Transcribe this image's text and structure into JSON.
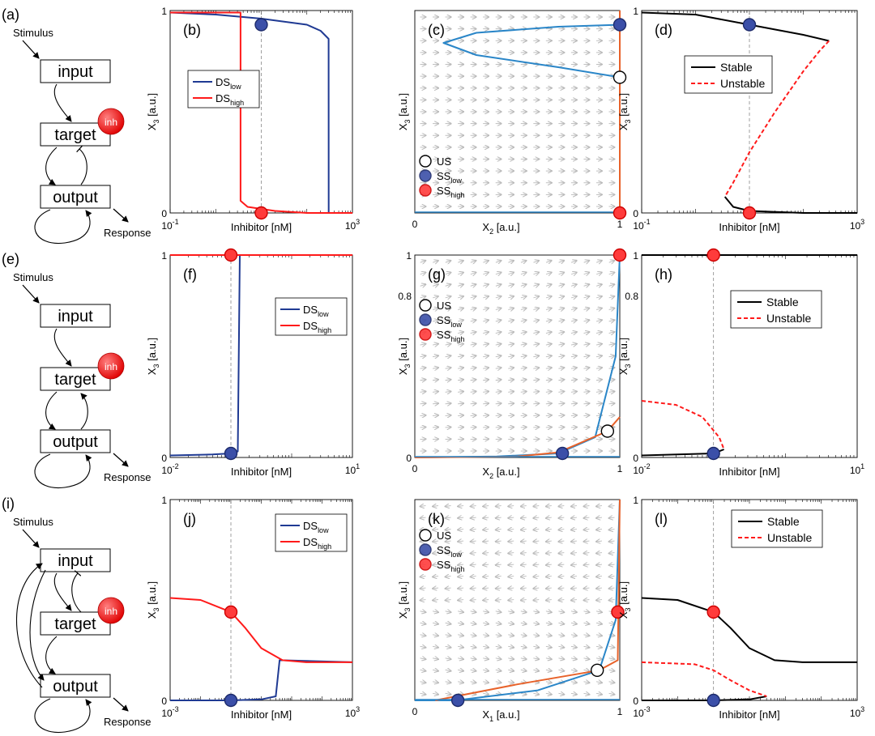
{
  "colors": {
    "ds_low": "#1f3a93",
    "ds_high": "#ff1a1a",
    "nullcline_blue": "#2a86c8",
    "nullcline_orange": "#e8622a",
    "ss_low": "#3b4fa8",
    "ss_high": "#ff3b3b",
    "stable": "#000000",
    "unstable": "#ff1a1a",
    "arrow": "#b8b8b8",
    "axis": "#000000"
  },
  "rows": [
    {
      "net": {
        "panel": "(a)",
        "stimulus": "Stimulus",
        "nodes": [
          "input",
          "target",
          "output"
        ],
        "inhibitor": "inh",
        "response": "Response",
        "topology": "neg"
      },
      "p1": {
        "panel": "(b)",
        "xlabel": "Inhibitor [nM]",
        "ylabel_main": "X",
        "ylabel_sub": "3",
        "ylabel_unit": " [a.u.]",
        "xtick_base": "10",
        "xtick_left_exp": "-1",
        "xtick_right_exp": "3",
        "yticks": [
          "0",
          "1"
        ],
        "legend": [
          {
            "main": "DS",
            "sub": "low"
          },
          {
            "main": "DS",
            "sub": "high"
          }
        ]
      },
      "p2": {
        "panel": "(c)",
        "xlabel_main": "X",
        "xlabel_sub": "2",
        "xlabel_unit": " [a.u.]",
        "ylabel_main": "X",
        "ylabel_sub": "3",
        "ylabel_unit": " [a.u.]",
        "xticks": [
          "0",
          "1"
        ],
        "yticks": [],
        "legend": [
          {
            "main": "US",
            "sub": ""
          },
          {
            "main": "SS",
            "sub": "low"
          },
          {
            "main": "SS",
            "sub": "high"
          }
        ]
      },
      "p3": {
        "panel": "(d)",
        "xlabel": "Inhibitor [nM]",
        "ylabel_main": "X",
        "ylabel_sub": "3",
        "ylabel_unit": " [a.u.]",
        "xtick_base": "10",
        "xtick_left_exp": "-1",
        "xtick_right_exp": "3",
        "yticks": [
          "0",
          "1"
        ],
        "legend": [
          "Stable",
          "Unstable"
        ]
      }
    },
    {
      "net": {
        "panel": "(e)",
        "stimulus": "Stimulus",
        "nodes": [
          "input",
          "target",
          "output"
        ],
        "inhibitor": "inh",
        "response": "Response",
        "topology": "pos"
      },
      "p1": {
        "panel": "(f)",
        "xlabel": "Inhibitor [nM]",
        "ylabel_main": "X",
        "ylabel_sub": "3",
        "ylabel_unit": " [a.u.]",
        "xtick_base": "10",
        "xtick_left_exp": "-2",
        "xtick_right_exp": "1",
        "yticks": [
          "0",
          "1"
        ],
        "legend": [
          {
            "main": "DS",
            "sub": "low"
          },
          {
            "main": "DS",
            "sub": "high"
          }
        ]
      },
      "p2": {
        "panel": "(g)",
        "xlabel_main": "X",
        "xlabel_sub": "2",
        "xlabel_unit": " [a.u.]",
        "ylabel_main": "X",
        "ylabel_sub": "3",
        "ylabel_unit": " [a.u.]",
        "xticks": [
          "0",
          "1"
        ],
        "yticks": [
          "0",
          "0.8",
          "1"
        ],
        "legend": [
          {
            "main": "US",
            "sub": ""
          },
          {
            "main": "SS",
            "sub": "low"
          },
          {
            "main": "SS",
            "sub": "high"
          }
        ]
      },
      "p3": {
        "panel": "(h)",
        "xlabel": "Inhibitor [nM]",
        "ylabel_main": "X",
        "ylabel_sub": "3",
        "ylabel_unit": " [a.u.]",
        "xtick_base": "10",
        "xtick_left_exp": "-2",
        "xtick_right_exp": "1",
        "yticks": [
          "0",
          "0.8",
          "1"
        ],
        "legend": [
          "Stable",
          "Unstable"
        ]
      }
    },
    {
      "net": {
        "panel": "(i)",
        "stimulus": "Stimulus",
        "nodes": [
          "input",
          "target",
          "output"
        ],
        "inhibitor": "inh",
        "response": "Response",
        "topology": "ff"
      },
      "p1": {
        "panel": "(j)",
        "xlabel": "Inhibitor [nM]",
        "ylabel_main": "X",
        "ylabel_sub": "3",
        "ylabel_unit": " [a.u.]",
        "xtick_base": "10",
        "xtick_left_exp": "-3",
        "xtick_right_exp": "3",
        "yticks": [
          "0",
          "1"
        ],
        "legend": [
          {
            "main": "DS",
            "sub": "low"
          },
          {
            "main": "DS",
            "sub": "high"
          }
        ]
      },
      "p2": {
        "panel": "(k)",
        "xlabel_main": "X",
        "xlabel_sub": "1",
        "xlabel_unit": " [a.u.]",
        "ylabel_main": "X",
        "ylabel_sub": "3",
        "ylabel_unit": " [a.u.]",
        "xticks": [
          "0",
          "1"
        ],
        "yticks": [],
        "legend": [
          {
            "main": "US",
            "sub": ""
          },
          {
            "main": "SS",
            "sub": "low"
          },
          {
            "main": "SS",
            "sub": "high"
          }
        ]
      },
      "p3": {
        "panel": "(l)",
        "xlabel": "Inhibitor [nM]",
        "ylabel_main": "X",
        "ylabel_sub": "3",
        "ylabel_unit": " [a.u.]",
        "xtick_base": "10",
        "xtick_left_exp": "-3",
        "xtick_right_exp": "3",
        "yticks": [
          "0",
          "1"
        ],
        "legend": [
          "Stable",
          "Unstable"
        ]
      }
    }
  ],
  "chart_data": [
    {
      "panel": "(b)",
      "type": "line",
      "xscale": "log",
      "xlim": [
        0.1,
        1000
      ],
      "ylim": [
        0,
        1
      ],
      "series": [
        {
          "name": "DS_low",
          "x": [
            0.1,
            1,
            10,
            100,
            200,
            300,
            301,
            1000
          ],
          "y": [
            0.99,
            0.98,
            0.96,
            0.93,
            0.9,
            0.86,
            0.0,
            0.0
          ]
        },
        {
          "name": "DS_high",
          "x": [
            0.1,
            1,
            3.5,
            3.51,
            5,
            20,
            100,
            1000
          ],
          "y": [
            0.99,
            0.99,
            0.99,
            0.06,
            0.03,
            0.01,
            0.0,
            0.0
          ]
        }
      ],
      "markers": [
        {
          "kind": "SS_low",
          "x": 10,
          "y": 0.93
        },
        {
          "kind": "SS_high",
          "x": 10,
          "y": 0.0
        }
      ],
      "vline_x": 10
    },
    {
      "panel": "(c)",
      "type": "line",
      "xlim": [
        0,
        1
      ],
      "ylim": [
        0,
        1
      ],
      "series": [
        {
          "name": "X3-nullcline",
          "x": [
            1,
            0.7,
            0.3,
            0.14,
            0.3,
            0.7,
            1
          ],
          "y": [
            0.93,
            0.92,
            0.89,
            0.84,
            0.78,
            0.72,
            0.67
          ]
        },
        {
          "name": "X2-nullcline",
          "x": [
            1,
            1
          ],
          "y": [
            0,
            1
          ]
        }
      ],
      "markers": [
        {
          "kind": "US",
          "x": 1,
          "y": 0.67
        },
        {
          "kind": "SS_low",
          "x": 1,
          "y": 0.93
        },
        {
          "kind": "SS_high",
          "x": 1,
          "y": 0.0
        }
      ]
    },
    {
      "panel": "(d)",
      "type": "line",
      "xscale": "log",
      "xlim": [
        0.1,
        1000
      ],
      "ylim": [
        0,
        1
      ],
      "series": [
        {
          "name": "Stable",
          "x": [
            0.1,
            1,
            10,
            100,
            300
          ],
          "y": [
            0.99,
            0.98,
            0.93,
            0.88,
            0.85
          ]
        },
        {
          "name": "Unstable",
          "x": [
            300,
            200,
            100,
            30,
            10,
            5,
            3.5
          ],
          "y": [
            0.85,
            0.8,
            0.7,
            0.5,
            0.3,
            0.15,
            0.08
          ]
        },
        {
          "name": "Stable",
          "x": [
            3.5,
            5,
            10,
            100,
            1000
          ],
          "y": [
            0.08,
            0.03,
            0.01,
            0.0,
            0.0
          ]
        }
      ],
      "markers": [
        {
          "kind": "SS_low",
          "x": 10,
          "y": 0.93
        },
        {
          "kind": "SS_high",
          "x": 10,
          "y": 0.0
        }
      ],
      "vline_x": 10
    },
    {
      "panel": "(f)",
      "type": "line",
      "xscale": "log",
      "xlim": [
        0.01,
        10
      ],
      "ylim": [
        0,
        1
      ],
      "series": [
        {
          "name": "DS_low",
          "x": [
            0.01,
            0.05,
            0.1,
            0.13,
            0.14,
            10
          ],
          "y": [
            0.01,
            0.015,
            0.02,
            0.03,
            1.0,
            1.0
          ]
        },
        {
          "name": "DS_high",
          "x": [
            0.01,
            10
          ],
          "y": [
            1.0,
            1.0
          ]
        }
      ],
      "markers": [
        {
          "kind": "SS_high",
          "x": 0.1,
          "y": 1.0
        },
        {
          "kind": "SS_low",
          "x": 0.1,
          "y": 0.02
        }
      ],
      "vline_x": 0.1
    },
    {
      "panel": "(g)",
      "type": "line",
      "xlim": [
        0,
        1
      ],
      "ylim": [
        0,
        1
      ],
      "series": [
        {
          "name": "X3-nullcline",
          "x": [
            0,
            0.4,
            0.7,
            0.88,
            0.98,
            1.0
          ],
          "y": [
            0.0,
            0.005,
            0.02,
            0.1,
            0.5,
            1.0
          ]
        },
        {
          "name": "X2-nullcline",
          "x": [
            0,
            0.5,
            0.7,
            0.94,
            1.0
          ],
          "y": [
            0.0,
            0.005,
            0.025,
            0.13,
            0.2
          ]
        }
      ],
      "markers": [
        {
          "kind": "US",
          "x": 0.94,
          "y": 0.13
        },
        {
          "kind": "SS_low",
          "x": 0.72,
          "y": 0.02
        },
        {
          "kind": "SS_high",
          "x": 1.0,
          "y": 1.0
        }
      ]
    },
    {
      "panel": "(h)",
      "type": "line",
      "xscale": "log",
      "xlim": [
        0.01,
        10
      ],
      "ylim": [
        0,
        1
      ],
      "series": [
        {
          "name": "Stable",
          "x": [
            0.01,
            10
          ],
          "y": [
            1.0,
            1.0
          ]
        },
        {
          "name": "Stable",
          "x": [
            0.01,
            0.1,
            0.14
          ],
          "y": [
            0.01,
            0.02,
            0.04
          ]
        },
        {
          "name": "Unstable",
          "x": [
            0.01,
            0.03,
            0.07,
            0.12,
            0.14
          ],
          "y": [
            0.28,
            0.26,
            0.2,
            0.1,
            0.04
          ]
        }
      ],
      "markers": [
        {
          "kind": "SS_high",
          "x": 0.1,
          "y": 1.0
        },
        {
          "kind": "SS_low",
          "x": 0.1,
          "y": 0.02
        }
      ],
      "vline_x": 0.1
    },
    {
      "panel": "(j)",
      "type": "line",
      "xscale": "log",
      "xlim": [
        0.001,
        1000
      ],
      "ylim": [
        0,
        1
      ],
      "series": [
        {
          "name": "DS_low",
          "x": [
            0.001,
            0.1,
            1,
            3,
            4,
            1000
          ],
          "y": [
            0.0,
            0.0,
            0.005,
            0.02,
            0.2,
            0.19
          ]
        },
        {
          "name": "DS_high",
          "x": [
            0.001,
            0.01,
            0.1,
            0.3,
            1,
            5,
            30,
            1000
          ],
          "y": [
            0.51,
            0.5,
            0.44,
            0.36,
            0.26,
            0.2,
            0.19,
            0.19
          ]
        }
      ],
      "markers": [
        {
          "kind": "SS_high",
          "x": 0.1,
          "y": 0.44
        },
        {
          "kind": "SS_low",
          "x": 0.1,
          "y": 0.0
        }
      ],
      "vline_x": 0.1
    },
    {
      "panel": "(k)",
      "type": "line",
      "xlim": [
        0,
        1
      ],
      "ylim": [
        0,
        1
      ],
      "series": [
        {
          "name": "X3-nullcline",
          "x": [
            0.0,
            0.2,
            0.6,
            0.9,
            0.98,
            1.0
          ],
          "y": [
            0.0,
            0.0,
            0.05,
            0.15,
            0.4,
            1.0
          ]
        },
        {
          "name": "X1-nullcline",
          "x": [
            0.1,
            0.2,
            0.5,
            0.9,
            0.99,
            1.0
          ],
          "y": [
            0.0,
            0.02,
            0.08,
            0.15,
            0.2,
            1.0
          ]
        }
      ],
      "markers": [
        {
          "kind": "US",
          "x": 0.89,
          "y": 0.15
        },
        {
          "kind": "SS_low",
          "x": 0.21,
          "y": 0.0
        },
        {
          "kind": "SS_high",
          "x": 0.99,
          "y": 0.44
        }
      ]
    },
    {
      "panel": "(l)",
      "type": "line",
      "xscale": "log",
      "xlim": [
        0.001,
        1000
      ],
      "ylim": [
        0,
        1
      ],
      "series": [
        {
          "name": "Stable",
          "x": [
            0.001,
            0.01,
            0.1,
            0.3,
            1,
            5,
            30,
            1000
          ],
          "y": [
            0.51,
            0.5,
            0.44,
            0.36,
            0.26,
            0.2,
            0.19,
            0.19
          ]
        },
        {
          "name": "Stable",
          "x": [
            0.001,
            0.1,
            1,
            3
          ],
          "y": [
            0.0,
            0.0,
            0.005,
            0.02
          ]
        },
        {
          "name": "Unstable",
          "x": [
            0.001,
            0.03,
            0.1,
            0.3,
            1,
            3
          ],
          "y": [
            0.19,
            0.18,
            0.15,
            0.1,
            0.05,
            0.02
          ]
        }
      ],
      "markers": [
        {
          "kind": "SS_high",
          "x": 0.1,
          "y": 0.44
        },
        {
          "kind": "SS_low",
          "x": 0.1,
          "y": 0.0
        }
      ],
      "vline_x": 0.1
    }
  ]
}
